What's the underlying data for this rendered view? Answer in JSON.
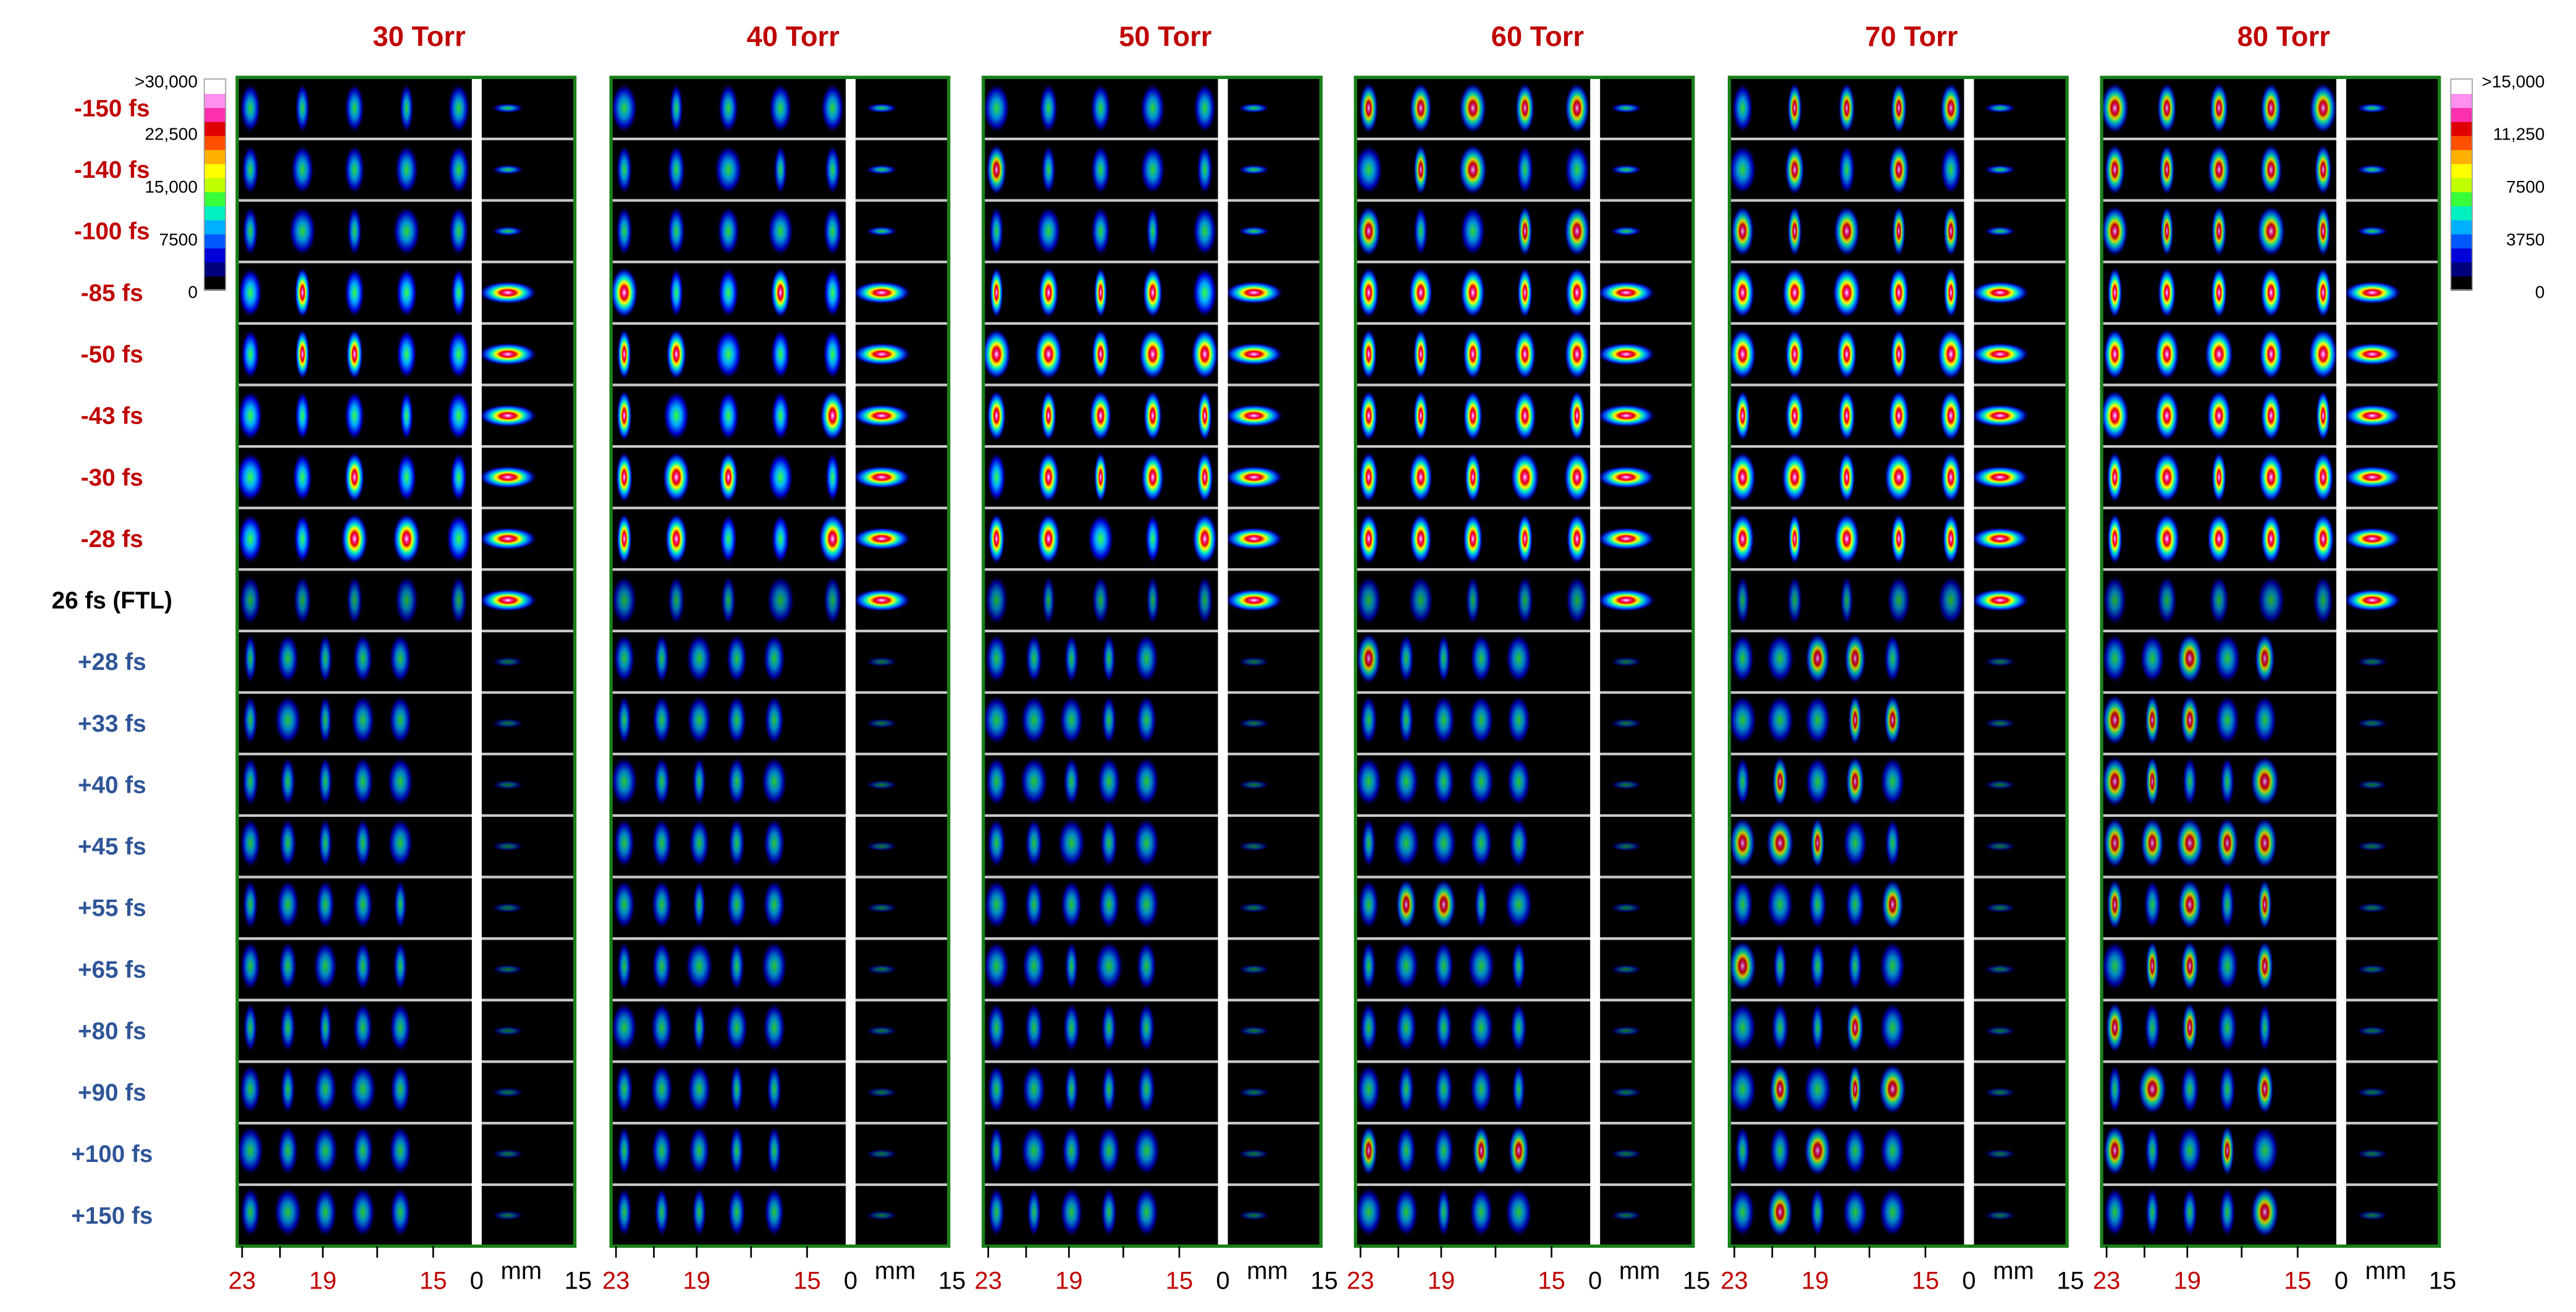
{
  "panels": [
    {
      "title": "30 Torr"
    },
    {
      "title": "40 Torr"
    },
    {
      "title": "50 Torr"
    },
    {
      "title": "60 Torr"
    },
    {
      "title": "70 Torr"
    },
    {
      "title": "80 Torr"
    }
  ],
  "rows": [
    {
      "label": "-150 fs",
      "group": "negative"
    },
    {
      "label": "-140 fs",
      "group": "negative"
    },
    {
      "label": "-100 fs",
      "group": "negative"
    },
    {
      "label": "-85 fs",
      "group": "negative"
    },
    {
      "label": "-50 fs",
      "group": "negative"
    },
    {
      "label": "-43 fs",
      "group": "negative"
    },
    {
      "label": "-30 fs",
      "group": "negative"
    },
    {
      "label": "-28 fs",
      "group": "negative"
    },
    {
      "label": "26 fs (FTL)",
      "group": "ftl"
    },
    {
      "label": "+28 fs",
      "group": "positive"
    },
    {
      "label": "+33 fs",
      "group": "positive"
    },
    {
      "label": "+40 fs",
      "group": "positive"
    },
    {
      "label": "+45 fs",
      "group": "positive"
    },
    {
      "label": "+55 fs",
      "group": "positive"
    },
    {
      "label": "+65 fs",
      "group": "positive"
    },
    {
      "label": "+80 fs",
      "group": "positive"
    },
    {
      "label": "+90 fs",
      "group": "positive"
    },
    {
      "label": "+100 fs",
      "group": "positive"
    },
    {
      "label": "+150 fs",
      "group": "positive"
    }
  ],
  "axis": {
    "left_ticks": [
      "23",
      "19",
      "15"
    ],
    "right_ticks": [
      "0",
      "15"
    ],
    "unit": "mm"
  },
  "colorbars": [
    {
      "side": "left",
      "labels": [
        ">30,000",
        "22,500",
        "15,000",
        "7500",
        "0"
      ]
    },
    {
      "side": "right",
      "labels": [
        ">15,000",
        "11,250",
        "7500",
        "3750",
        "0"
      ]
    }
  ],
  "colors": {
    "negative_label": "#c00000",
    "ftl_label": "#000000",
    "positive_label": "#2f5597",
    "panel_title": "#c00000",
    "tick_red": "#c00000",
    "frame": "#1a7f1a",
    "divider": "#c8c8c8"
  },
  "colormap": [
    "#000000",
    "#00007a",
    "#0000d8",
    "#0058ff",
    "#00b0ff",
    "#00f0c0",
    "#38ff38",
    "#c0ff00",
    "#ffff00",
    "#ffb000",
    "#ff5000",
    "#e00000",
    "#ff30b0",
    "#ff90f0",
    "#ffffff"
  ]
}
